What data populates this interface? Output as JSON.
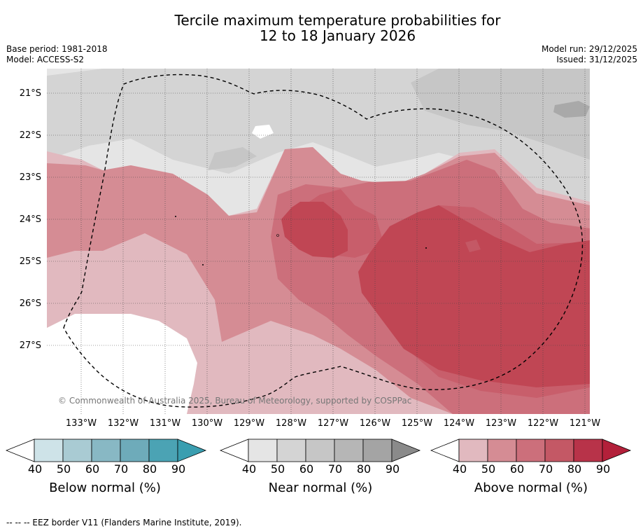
{
  "title": {
    "line1": "Tercile maximum temperature probabilities for",
    "line2": "12 to 18 January 2026"
  },
  "meta": {
    "base_period": "Base period: 1981-2018",
    "model": "Model: ACCESS-S2",
    "model_run": "Model run: 29/12/2025",
    "issued": "Issued: 31/12/2025"
  },
  "map": {
    "lat_labels": [
      "21°S",
      "22°S",
      "23°S",
      "24°S",
      "25°S",
      "26°S",
      "27°S"
    ],
    "lon_labels": [
      "133°W",
      "132°W",
      "131°W",
      "130°W",
      "129°W",
      "128°W",
      "127°W",
      "126°W",
      "125°W",
      "124°W",
      "123°W",
      "122°W",
      "121°W"
    ],
    "copyright": "© Commonwealth of Australia 2025, Bureau of Meteorology, supported by COSPPac",
    "colors": {
      "white": "#ffffff",
      "near40": "#e5e5e5",
      "near50": "#d4d4d4",
      "near60": "#c6c6c6",
      "above40": "#e1b9bf",
      "above50": "#d58c94",
      "above60": "#cc6f7b",
      "above70": "#c85e6b",
      "above80": "#c04654"
    }
  },
  "colorbars": [
    {
      "title": "Below normal (%)",
      "ticks": [
        "40",
        "50",
        "60",
        "70",
        "80",
        "90"
      ],
      "colors": [
        "#cee3e8",
        "#a9cbd3",
        "#88b8c4",
        "#6eabba",
        "#4ba3b4"
      ],
      "arrow_low": "#ffffff",
      "arrow_high": "#3a9eb0"
    },
    {
      "title": "Near normal (%)",
      "ticks": [
        "40",
        "50",
        "60",
        "70",
        "80",
        "90"
      ],
      "colors": [
        "#e5e5e5",
        "#d4d4d4",
        "#c6c6c6",
        "#b6b6b6",
        "#a4a4a4"
      ],
      "arrow_low": "#ffffff",
      "arrow_high": "#8a8a8a"
    },
    {
      "title": "Above normal (%)",
      "ticks": [
        "40",
        "50",
        "60",
        "70",
        "80",
        "90"
      ],
      "colors": [
        "#e1b9bf",
        "#d58c94",
        "#cc6f7b",
        "#c45865",
        "#b83349"
      ],
      "arrow_low": "#ffffff",
      "arrow_high": "#b3203a"
    }
  ],
  "footnote": "--  --  -- EEZ border V11 (Flanders Marine Institute, 2019)."
}
